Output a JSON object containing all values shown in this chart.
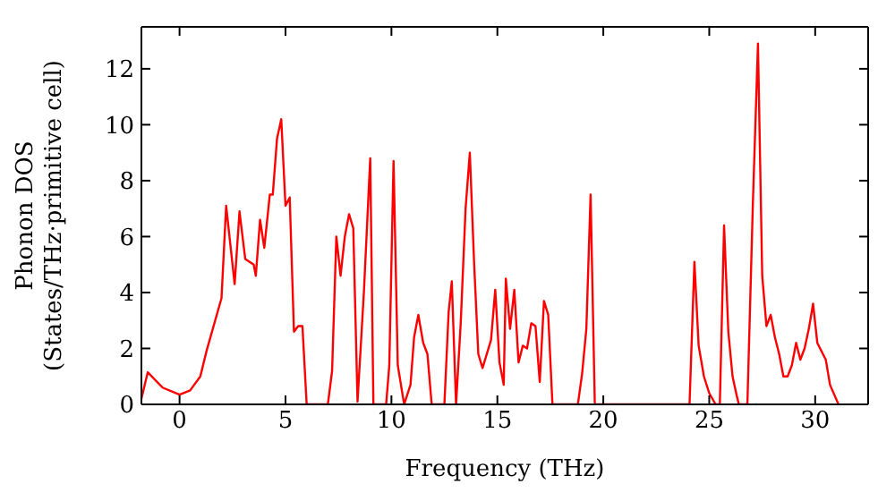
{
  "chart_data": {
    "type": "line",
    "xlabel": "Frequency (THz)",
    "ylabel": "Phonon DOS\n(States/THz·primitive cell)",
    "xlim": [
      -1.8,
      32.5
    ],
    "xticks": [
      0,
      5,
      10,
      15,
      20,
      25,
      30
    ],
    "ylim": [
      0,
      13.5
    ],
    "yticks": [
      0,
      2,
      4,
      6,
      8,
      10,
      12
    ],
    "grid": false,
    "marker": "none",
    "line_style": "solid",
    "series": [
      {
        "color": "#ff0000",
        "x": [
          -1.8,
          -1.5,
          -0.8,
          0,
          0.5,
          0.98,
          1.27,
          1.98,
          2.2,
          2.6,
          2.83,
          3.1,
          3.5,
          3.6,
          3.8,
          4.0,
          4.26,
          4.4,
          4.6,
          4.8,
          5.0,
          5.2,
          5.4,
          5.6,
          5.8,
          6.0,
          7.0,
          7.2,
          7.4,
          7.6,
          7.8,
          8.0,
          8.2,
          8.4,
          8.7,
          9.0,
          9.15,
          9.75,
          9.9,
          10.1,
          10.3,
          10.6,
          10.9,
          11.07,
          11.27,
          11.5,
          11.7,
          11.9,
          12.5,
          12.7,
          12.85,
          13.05,
          13.27,
          13.5,
          13.7,
          13.9,
          14.1,
          14.3,
          14.7,
          14.9,
          15.1,
          15.3,
          15.4,
          15.6,
          15.8,
          16.0,
          16.2,
          16.4,
          16.6,
          16.8,
          17.0,
          17.2,
          17.4,
          17.6,
          18.8,
          19.0,
          19.2,
          19.4,
          19.6,
          24.07,
          24.3,
          24.5,
          24.75,
          25.0,
          25.3,
          25.5,
          25.7,
          25.9,
          26.1,
          26.3,
          26.4,
          26.8,
          27.06,
          27.3,
          27.5,
          27.7,
          27.9,
          28.1,
          28.3,
          28.5,
          28.7,
          28.9,
          29.1,
          29.3,
          29.5,
          29.7,
          29.9,
          30.1,
          30.5,
          30.7,
          31.1
        ],
        "values": [
          0.2,
          1.15,
          0.6,
          0.35,
          0.5,
          1.0,
          1.9,
          3.8,
          7.1,
          4.3,
          6.9,
          5.2,
          5.0,
          4.6,
          6.6,
          5.6,
          7.5,
          7.5,
          9.5,
          10.2,
          7.1,
          7.4,
          2.6,
          2.8,
          2.8,
          0,
          0,
          1.2,
          6.0,
          4.6,
          6.0,
          6.8,
          6.3,
          0.1,
          4.0,
          8.8,
          0,
          0,
          1.4,
          8.7,
          1.4,
          0,
          0.7,
          2.4,
          3.2,
          2.2,
          1.8,
          0,
          0,
          3.3,
          4.4,
          0,
          2.9,
          7.0,
          9.0,
          5.1,
          1.8,
          1.3,
          2.3,
          4.1,
          1.5,
          0.7,
          4.5,
          2.7,
          4.1,
          1.5,
          2.1,
          2.0,
          2.9,
          2.8,
          0.8,
          3.7,
          3.2,
          0,
          0,
          1.1,
          2.7,
          7.5,
          0,
          0,
          5.1,
          2.1,
          1.0,
          0.4,
          0,
          0,
          6.4,
          2.6,
          1.0,
          0.3,
          0,
          0,
          7.2,
          12.9,
          4.6,
          2.8,
          3.2,
          2.4,
          1.8,
          1.0,
          1.0,
          1.4,
          2.2,
          1.6,
          2.0,
          2.7,
          3.6,
          2.2,
          1.6,
          0.7,
          0
        ]
      }
    ]
  }
}
